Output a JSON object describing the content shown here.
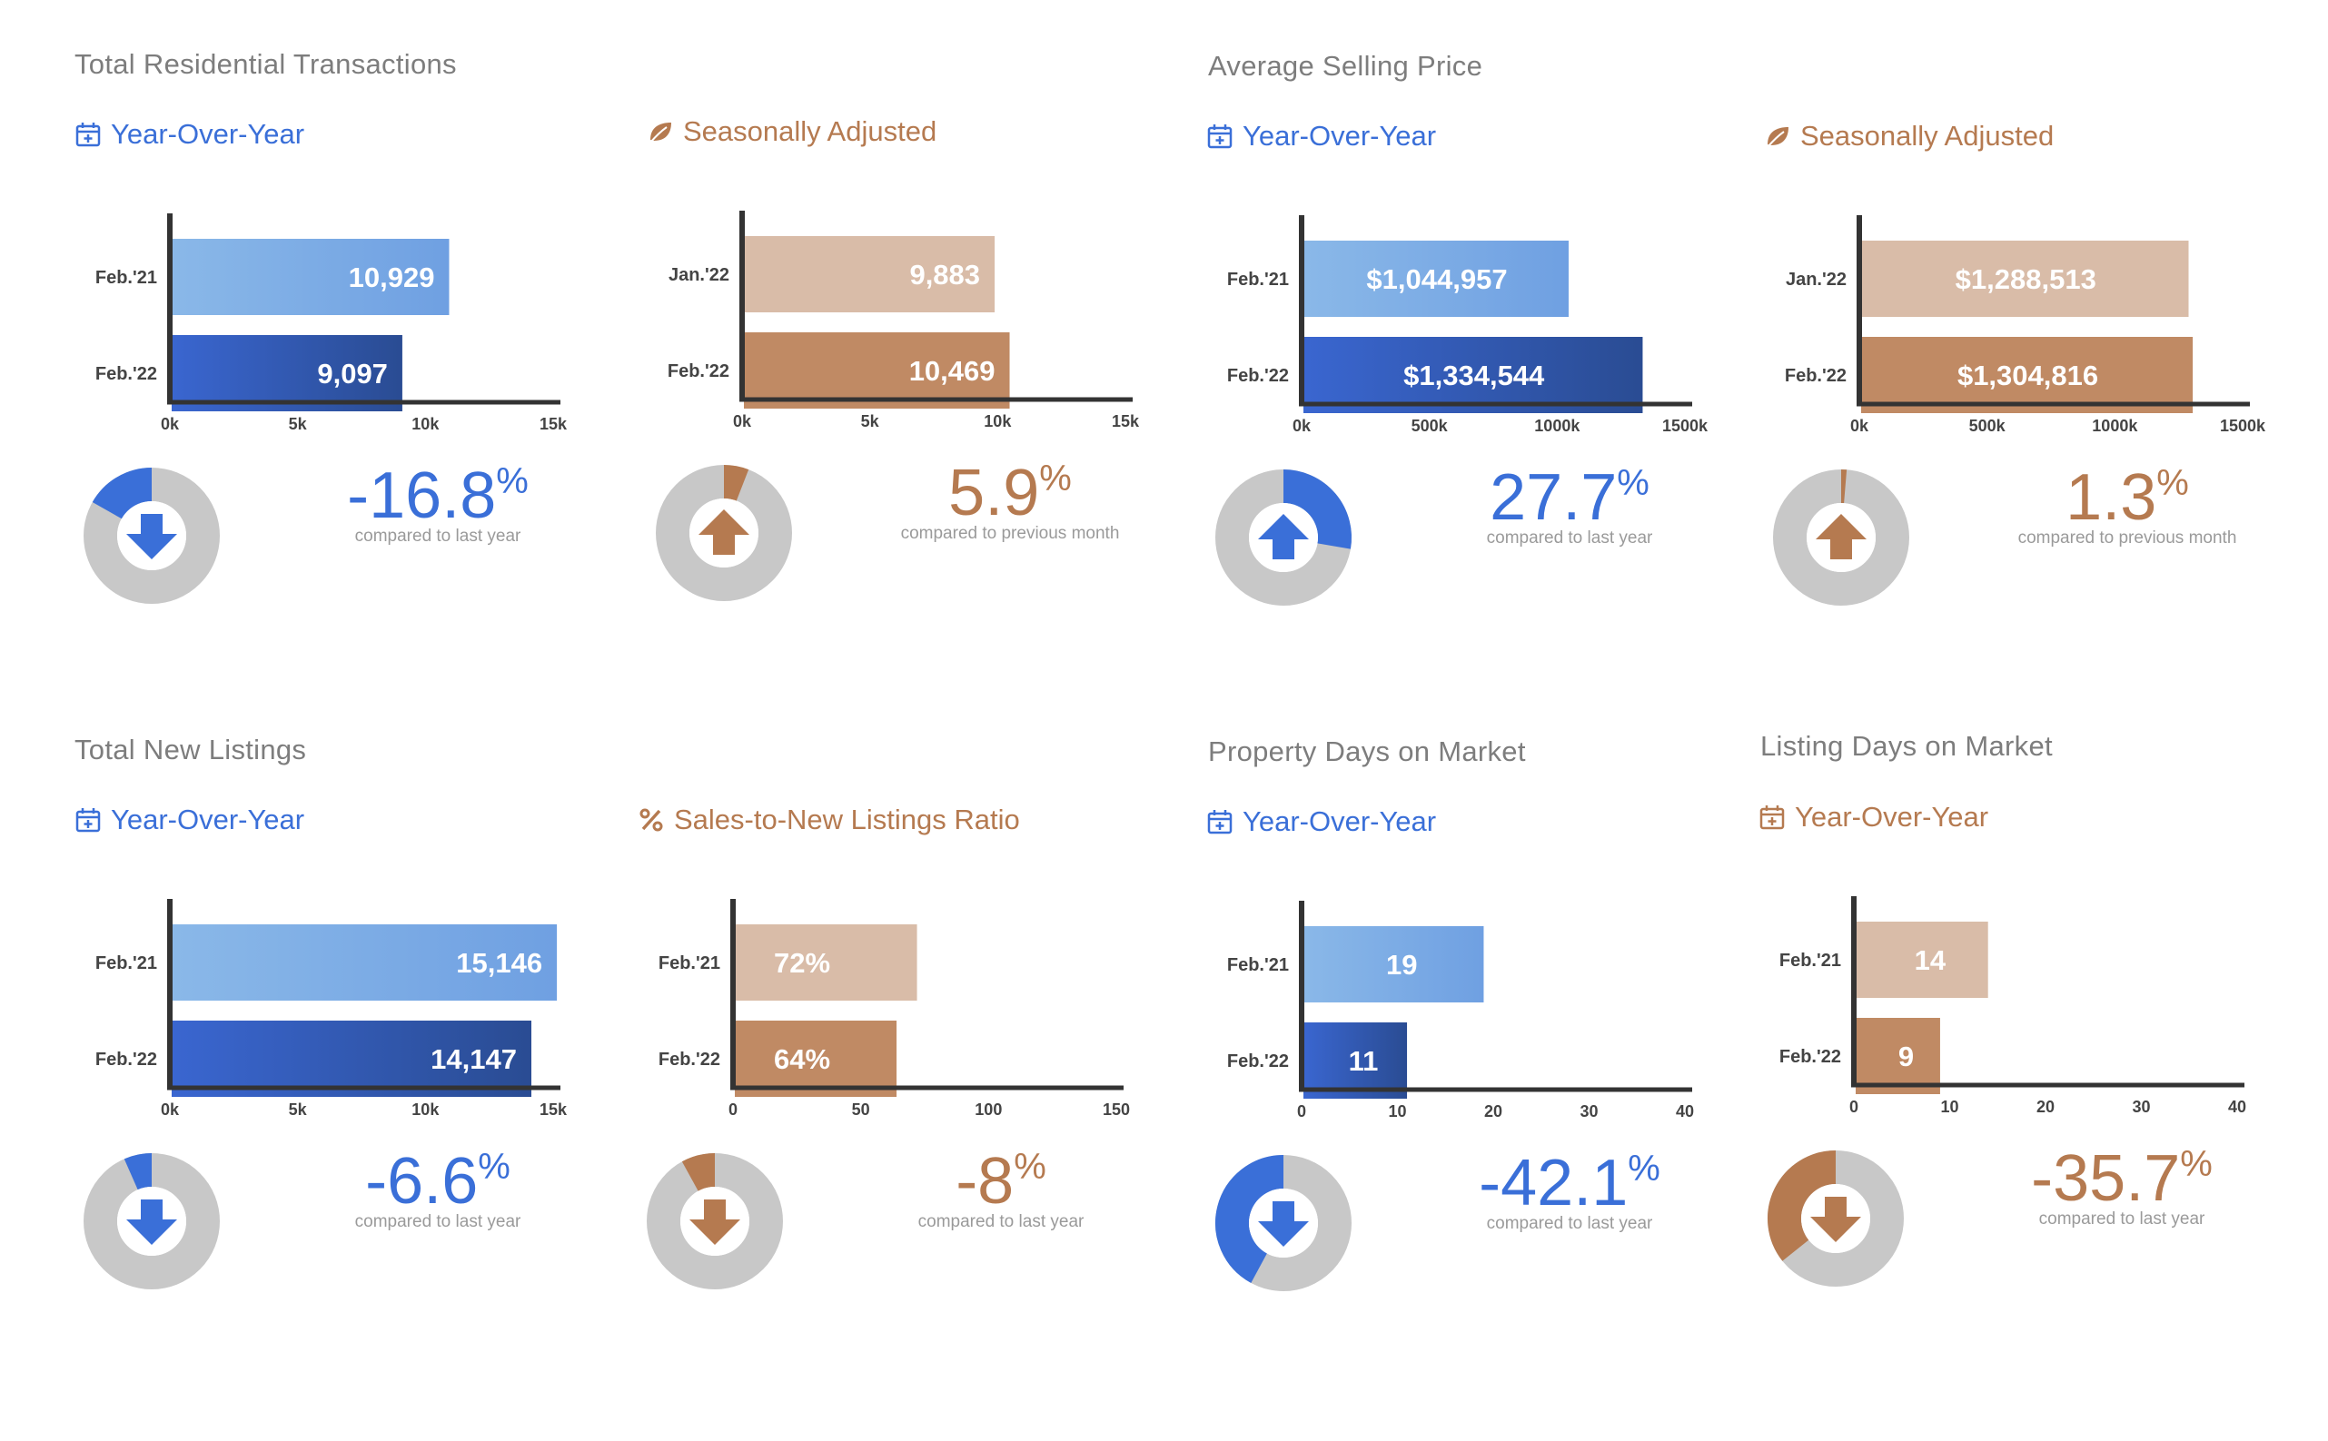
{
  "sections": [
    {
      "title": "Total Residential Transactions"
    },
    {
      "title": "Average Selling Price"
    },
    {
      "title": "Total New Listings"
    },
    {
      "title": "Property Days on Market"
    },
    {
      "title": "Listing Days on Market"
    }
  ],
  "colors": {
    "blue": "#3a6fd8",
    "blue_light_start": "#8ab8e8",
    "blue_light_end": "#6fa0e2",
    "blue_dark_start": "#3a66d0",
    "blue_dark_end": "#2a4c93",
    "brown": "#b57a50",
    "brown_light": "#d9bca8",
    "brown_dark": "#c08a64",
    "gray_ring": "#c8c8c8",
    "axis": "#333333"
  },
  "panels": [
    {
      "subhead": "Year-Over-Year",
      "icon": "calendar-icon",
      "theme": "blue",
      "pct_value": "-16.8",
      "pct_symbol": "%",
      "caption": "compared to last year",
      "direction": "down",
      "donut_fraction": 0.168,
      "chart_data": {
        "type": "bar",
        "orientation": "horizontal",
        "categories": [
          "Feb.'21",
          "Feb.'22"
        ],
        "values": [
          10929,
          9097
        ],
        "value_labels": [
          "10,929",
          "9,097"
        ],
        "xticks": [
          0,
          5000,
          10000,
          15000
        ],
        "xtick_labels": [
          "0k",
          "5k",
          "10k",
          "15k"
        ],
        "xlim": [
          0,
          15000
        ]
      }
    },
    {
      "subhead": "Seasonally Adjusted",
      "icon": "leaf-icon",
      "theme": "brown",
      "pct_value": "5.9",
      "pct_symbol": "%",
      "caption": "compared to previous month",
      "direction": "up",
      "donut_fraction": 0.059,
      "chart_data": {
        "type": "bar",
        "orientation": "horizontal",
        "categories": [
          "Jan.'22",
          "Feb.'22"
        ],
        "values": [
          9883,
          10469
        ],
        "value_labels": [
          "9,883",
          "10,469"
        ],
        "xticks": [
          0,
          5000,
          10000,
          15000
        ],
        "xtick_labels": [
          "0k",
          "5k",
          "10k",
          "15k"
        ],
        "xlim": [
          0,
          15000
        ]
      }
    },
    {
      "subhead": "Year-Over-Year",
      "icon": "calendar-icon",
      "theme": "blue",
      "pct_value": "27.7",
      "pct_symbol": "%",
      "caption": "compared to last year",
      "direction": "up",
      "donut_fraction": 0.277,
      "chart_data": {
        "type": "bar",
        "orientation": "horizontal",
        "categories": [
          "Feb.'21",
          "Feb.'22"
        ],
        "values": [
          1044957,
          1334544
        ],
        "value_labels": [
          "$1,044,957",
          "$1,334,544"
        ],
        "xticks": [
          0,
          500000,
          1000000,
          1500000
        ],
        "xtick_labels": [
          "0k",
          "500k",
          "1000k",
          "1500k"
        ],
        "xlim": [
          0,
          1500000
        ]
      }
    },
    {
      "subhead": "Seasonally Adjusted",
      "icon": "leaf-icon",
      "theme": "brown",
      "pct_value": "1.3",
      "pct_symbol": "%",
      "caption": "compared to previous month",
      "direction": "up",
      "donut_fraction": 0.013,
      "chart_data": {
        "type": "bar",
        "orientation": "horizontal",
        "categories": [
          "Jan.'22",
          "Feb.'22"
        ],
        "values": [
          1288513,
          1304816
        ],
        "value_labels": [
          "$1,288,513",
          "$1,304,816"
        ],
        "xticks": [
          0,
          500000,
          1000000,
          1500000
        ],
        "xtick_labels": [
          "0k",
          "500k",
          "1000k",
          "1500k"
        ],
        "xlim": [
          0,
          1500000
        ]
      }
    },
    {
      "subhead": "Year-Over-Year",
      "icon": "calendar-icon",
      "theme": "blue",
      "pct_value": "-6.6",
      "pct_symbol": "%",
      "caption": "compared to last year",
      "direction": "down",
      "donut_fraction": 0.066,
      "chart_data": {
        "type": "bar",
        "orientation": "horizontal",
        "categories": [
          "Feb.'21",
          "Feb.'22"
        ],
        "values": [
          15146,
          14147
        ],
        "value_labels": [
          "15,146",
          "14,147"
        ],
        "xticks": [
          0,
          5000,
          10000,
          15000
        ],
        "xtick_labels": [
          "0k",
          "5k",
          "10k",
          "15k"
        ],
        "xlim": [
          0,
          15000
        ]
      }
    },
    {
      "subhead": "Sales-to-New Listings Ratio",
      "icon": "percent-icon",
      "theme": "brown",
      "pct_value": "-8",
      "pct_symbol": "%",
      "caption": "compared to last year",
      "direction": "down",
      "donut_fraction": 0.08,
      "chart_data": {
        "type": "bar",
        "orientation": "horizontal",
        "categories": [
          "Feb.'21",
          "Feb.'22"
        ],
        "values": [
          72,
          64
        ],
        "value_labels": [
          "72%",
          "64%"
        ],
        "xticks": [
          0,
          50,
          100,
          150
        ],
        "xtick_labels": [
          "0",
          "50",
          "100",
          "150"
        ],
        "xlim": [
          0,
          150
        ]
      }
    },
    {
      "subhead": "Year-Over-Year",
      "icon": "calendar-icon",
      "theme": "blue",
      "pct_value": "-42.1",
      "pct_symbol": "%",
      "caption": "compared to last year",
      "direction": "down",
      "donut_fraction": 0.421,
      "chart_data": {
        "type": "bar",
        "orientation": "horizontal",
        "categories": [
          "Feb.'21",
          "Feb.'22"
        ],
        "values": [
          19,
          11
        ],
        "value_labels": [
          "19",
          "11"
        ],
        "xticks": [
          0,
          10,
          20,
          30,
          40
        ],
        "xtick_labels": [
          "0",
          "10",
          "20",
          "30",
          "40"
        ],
        "xlim": [
          0,
          40
        ]
      }
    },
    {
      "subhead": "Year-Over-Year",
      "icon": "calendar-icon",
      "theme": "brown",
      "pct_value": "-35.7",
      "pct_symbol": "%",
      "caption": "compared to last year",
      "direction": "down",
      "donut_fraction": 0.357,
      "chart_data": {
        "type": "bar",
        "orientation": "horizontal",
        "categories": [
          "Feb.'21",
          "Feb.'22"
        ],
        "values": [
          14,
          9
        ],
        "value_labels": [
          "14",
          "9"
        ],
        "xticks": [
          0,
          10,
          20,
          30,
          40
        ],
        "xtick_labels": [
          "0",
          "10",
          "20",
          "30",
          "40"
        ],
        "xlim": [
          0,
          40
        ]
      }
    }
  ]
}
